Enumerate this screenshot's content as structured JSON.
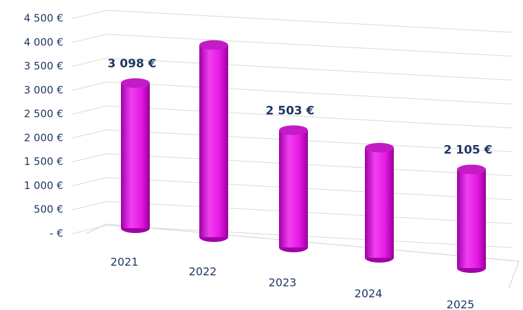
{
  "chart_data": {
    "type": "bar3d",
    "categories": [
      "2021",
      "2022",
      "2023",
      "2024",
      "2025"
    ],
    "values": [
      3098,
      4100,
      2503,
      2350,
      2105
    ],
    "value_labels": [
      "3 098 €",
      null,
      "2 503 €",
      null,
      "2 105 €"
    ],
    "color": "#e619e6",
    "ylim": [
      0,
      4500
    ],
    "yticks": [
      {
        "value": 0,
        "label": "- €"
      },
      {
        "value": 500,
        "label": "500 €"
      },
      {
        "value": 1000,
        "label": "1 000 €"
      },
      {
        "value": 1500,
        "label": "1 500 €"
      },
      {
        "value": 2000,
        "label": "2 000 €"
      },
      {
        "value": 2500,
        "label": "2 500 €"
      },
      {
        "value": 3000,
        "label": "3 000 €"
      },
      {
        "value": 3500,
        "label": "3 500 €"
      },
      {
        "value": 4000,
        "label": "4 000 €"
      },
      {
        "value": 4500,
        "label": "4 500 €"
      }
    ],
    "grid": true
  }
}
